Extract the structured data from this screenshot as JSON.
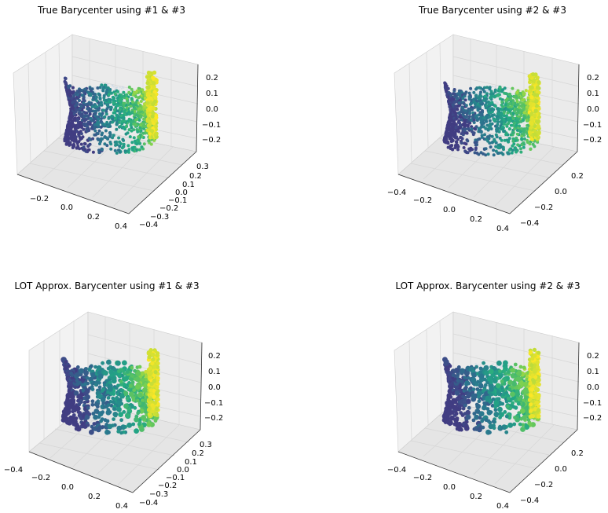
{
  "colormap": [
    "#440154",
    "#414487",
    "#2a788e",
    "#22a884",
    "#7ad151",
    "#fde725"
  ],
  "pane_color": "#f2f2f2",
  "chart_data": [
    {
      "type": "scatter",
      "projection": "3d",
      "title": "True Barycenter using #1 & #3",
      "x_ticks": [
        "−0.2",
        "0.0",
        "0.2",
        "0.4"
      ],
      "y_ticks": [
        "0.3",
        "0.2",
        "0.1",
        "0.0",
        "−0.1",
        "−0.2",
        "−0.3",
        "−0.4"
      ],
      "z_ticks": [
        "0.2",
        "0.1",
        "0.0",
        "−0.1",
        "−0.2"
      ],
      "xlim": [
        -0.35,
        0.42
      ],
      "ylim": [
        -0.42,
        0.35
      ],
      "zlim": [
        -0.28,
        0.26
      ],
      "grid": true
    },
    {
      "type": "scatter",
      "projection": "3d",
      "title": "True Barycenter using #2 & #3",
      "x_ticks": [
        "−0.4",
        "−0.2",
        "0.0",
        "0.2",
        "0.4"
      ],
      "y_ticks": [
        "0.2",
        "0.0",
        "−0.2",
        "−0.4"
      ],
      "z_ticks": [
        "0.2",
        "0.1",
        "0.0",
        "−0.1",
        "−0.2"
      ],
      "xlim": [
        -0.45,
        0.42
      ],
      "ylim": [
        -0.45,
        0.3
      ],
      "zlim": [
        -0.28,
        0.26
      ],
      "grid": true
    },
    {
      "type": "scatter",
      "projection": "3d",
      "title": "LOT Approx. Barycenter using #1 & #3",
      "x_ticks": [
        "−0.4",
        "−0.2",
        "0.0",
        "0.2",
        "0.4"
      ],
      "y_ticks": [
        "0.3",
        "0.2",
        "0.1",
        "0.0",
        "−0.1",
        "−0.2",
        "−0.3",
        "−0.4"
      ],
      "z_ticks": [
        "0.2",
        "0.1",
        "0.0",
        "−0.1",
        "−0.2"
      ],
      "xlim": [
        -0.45,
        0.42
      ],
      "ylim": [
        -0.42,
        0.35
      ],
      "zlim": [
        -0.28,
        0.26
      ],
      "grid": true
    },
    {
      "type": "scatter",
      "projection": "3d",
      "title": "LOT Approx. Barycenter using #2 & #3",
      "x_ticks": [
        "−0.4",
        "−0.2",
        "0.0",
        "0.2",
        "0.4"
      ],
      "y_ticks": [
        "0.2",
        "0.0",
        "−0.2",
        "−0.4"
      ],
      "z_ticks": [
        "0.2",
        "0.1",
        "0.0",
        "−0.1",
        "−0.2"
      ],
      "xlim": [
        -0.45,
        0.42
      ],
      "ylim": [
        -0.45,
        0.3
      ],
      "zlim": [
        -0.28,
        0.26
      ],
      "grid": true
    }
  ]
}
